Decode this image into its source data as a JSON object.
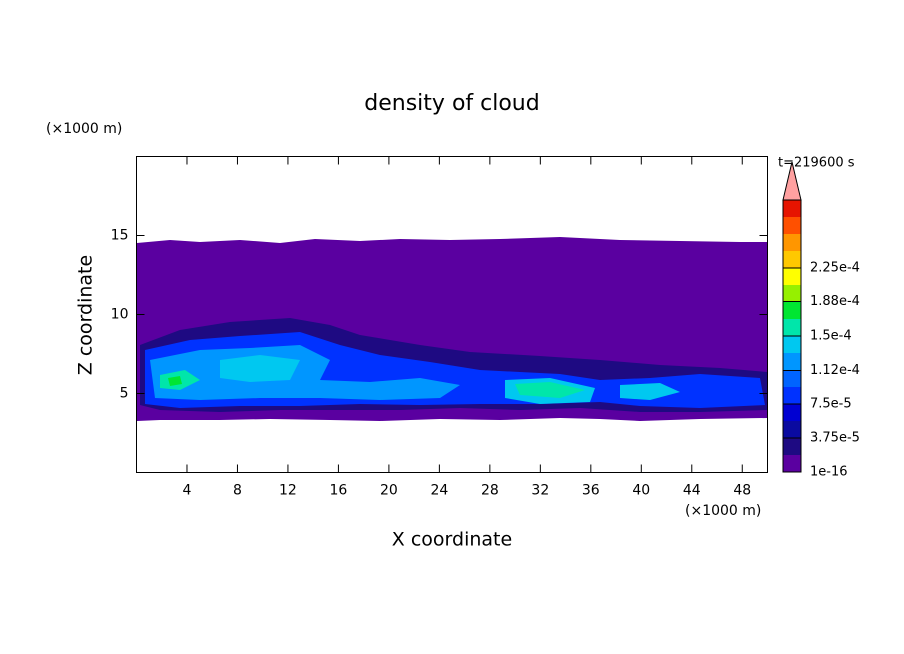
{
  "chart_data": {
    "type": "contour",
    "title": "density of cloud",
    "x_label": "X coordinate",
    "y_label": "Z coordinate",
    "x_unit": "(×1000 m)",
    "y_unit": "(×1000 m)",
    "time_label": "t=219600 s",
    "xlim": [
      0,
      50
    ],
    "xticks": [
      4,
      8,
      12,
      16,
      20,
      24,
      28,
      32,
      36,
      40,
      44,
      48
    ],
    "ylim": [
      0,
      20
    ],
    "yticks": [
      5,
      10,
      15
    ],
    "colorbar": {
      "ticks": [
        {
          "value": 1e-16,
          "label": "1e-16"
        },
        {
          "value": 3.75e-05,
          "label": "3.75e-5"
        },
        {
          "value": 7.5e-05,
          "label": "7.5e-5"
        },
        {
          "value": 0.000112,
          "label": "1.12e-4"
        },
        {
          "value": 0.00015,
          "label": "1.5e-4"
        },
        {
          "value": 0.000188,
          "label": "1.88e-4"
        },
        {
          "value": 0.000225,
          "label": "2.25e-4"
        }
      ],
      "colors": [
        "#5a00a0",
        "#1e0a82",
        "#0a0aa0",
        "#0000d2",
        "#0032ff",
        "#0064ff",
        "#0096ff",
        "#00c8f0",
        "#00e6aa",
        "#00e632",
        "#96f000",
        "#ffff00",
        "#ffc800",
        "#ff9600",
        "#ff5000",
        "#e61400"
      ],
      "extend_color": "#ffa0a0"
    }
  }
}
